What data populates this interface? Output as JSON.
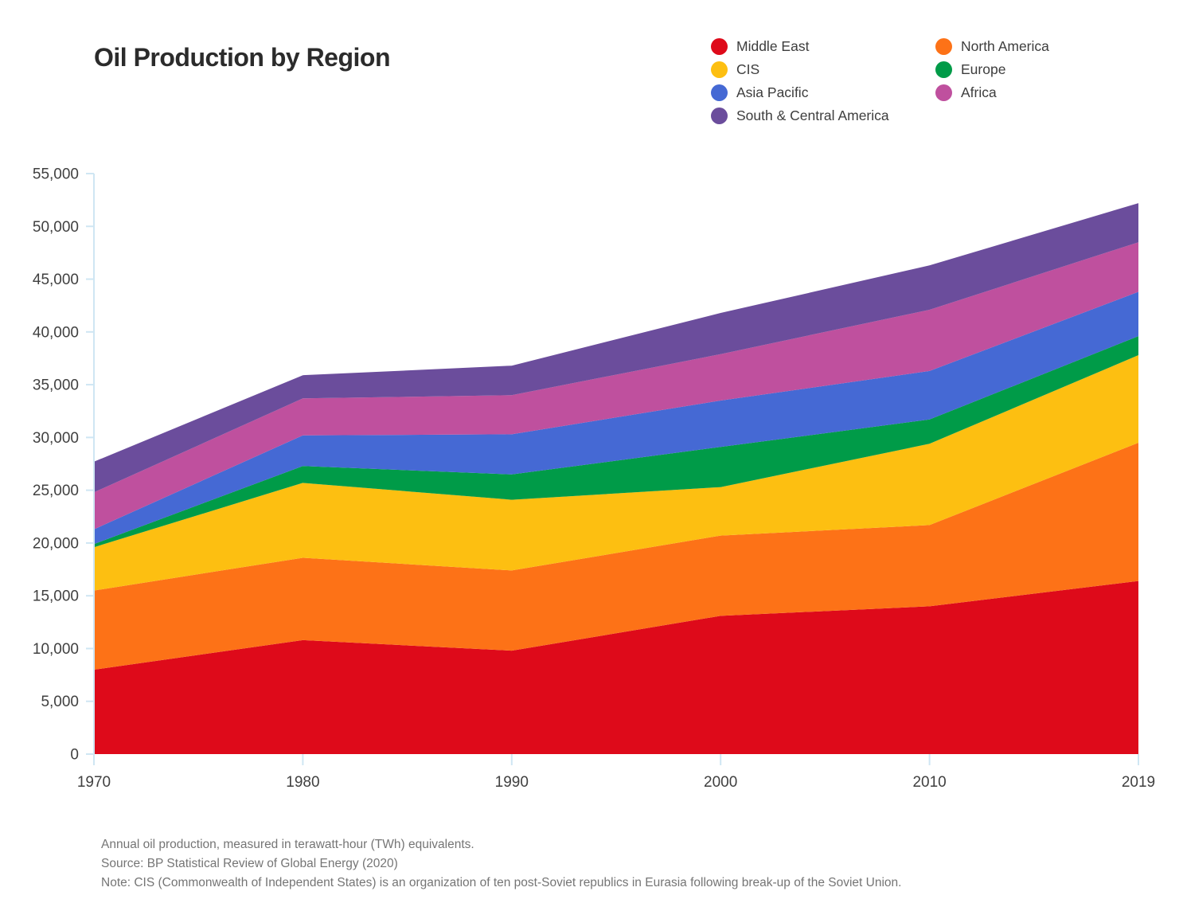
{
  "title": "Oil Production by Region",
  "legend": {
    "columns": [
      [
        {
          "label": "Middle East",
          "color": "#de0a1a"
        },
        {
          "label": "CIS",
          "color": "#fdbf11"
        },
        {
          "label": "Asia Pacific",
          "color": "#4569d4"
        },
        {
          "label": "South & Central America",
          "color": "#6b4d9c"
        }
      ],
      [
        {
          "label": "North America",
          "color": "#fd7217"
        },
        {
          "label": "Europe",
          "color": "#009b48"
        },
        {
          "label": "Africa",
          "color": "#bf509e"
        }
      ]
    ]
  },
  "chart_data": {
    "type": "area",
    "stacked": true,
    "title": "Oil Production by Region",
    "unit": "TWh",
    "x": [
      1970,
      1980,
      1990,
      2000,
      2010,
      2019
    ],
    "x_tick_labels": [
      "1970",
      "1980",
      "1990",
      "2000",
      "2010",
      "2019"
    ],
    "ylim": [
      0,
      55000
    ],
    "ytick_step": 5000,
    "grid": false,
    "legend_position": "top-right",
    "xlabel": "",
    "ylabel": "",
    "series": [
      {
        "name": "Middle East",
        "color": "#de0a1a",
        "values": [
          8000,
          10800,
          9800,
          13100,
          14000,
          16400
        ]
      },
      {
        "name": "North America",
        "color": "#fd7217",
        "values": [
          7500,
          7800,
          7600,
          7600,
          7700,
          13100
        ]
      },
      {
        "name": "CIS",
        "color": "#fdbf11",
        "values": [
          4100,
          7100,
          6700,
          4600,
          7700,
          8300
        ]
      },
      {
        "name": "Europe",
        "color": "#009b48",
        "values": [
          300,
          1600,
          2400,
          3800,
          2300,
          1800
        ]
      },
      {
        "name": "Asia Pacific",
        "color": "#4569d4",
        "values": [
          1400,
          2900,
          3800,
          4400,
          4600,
          4200
        ]
      },
      {
        "name": "Africa",
        "color": "#bf509e",
        "values": [
          3500,
          3500,
          3700,
          4400,
          5800,
          4700
        ]
      },
      {
        "name": "South & Central America",
        "color": "#6b4d9c",
        "values": [
          2900,
          2200,
          2800,
          3900,
          4200,
          3700
        ]
      }
    ],
    "stacked_totals": [
      27700,
      35900,
      36800,
      41800,
      46300,
      52200
    ]
  },
  "footnotes": [
    "Annual oil production, measured in terawatt-hour (TWh) equivalents.",
    "Source: BP Statistical Review of Global Energy (2020)",
    "Note: CIS (Commonwealth of Independent States) is an organization of ten post-Soviet republics in Eurasia following break-up of the Soviet Union."
  ],
  "colors": {
    "axis": "#cfe6f3",
    "tick_label": "#404040",
    "title": "#2b2b2b",
    "footnote": "#757575",
    "background": "#ffffff"
  }
}
